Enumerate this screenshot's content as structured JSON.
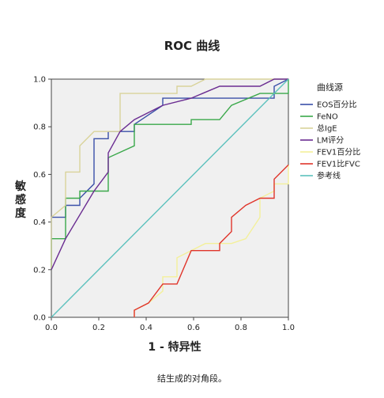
{
  "chart_data": {
    "type": "line",
    "title": "ROC 曲线",
    "xlabel": "1 - 特异性",
    "ylabel": "敏感度",
    "xlim": [
      0,
      1
    ],
    "ylim": [
      0,
      1
    ],
    "x_ticks": [
      "0.0",
      "0.2",
      "0.4",
      "0.6",
      "0.8",
      "1.0"
    ],
    "y_ticks": [
      "0.0",
      "0.2",
      "0.4",
      "0.6",
      "0.8",
      "1.0"
    ],
    "grid": false,
    "legend_title": "曲线源",
    "legend_position": "right",
    "footnote": "结生成的对角段。",
    "series": [
      {
        "name": "EOS百分比",
        "color": "#3a4fa8",
        "points": [
          [
            0,
            0.2
          ],
          [
            0,
            0.42
          ],
          [
            0.06,
            0.42
          ],
          [
            0.06,
            0.47
          ],
          [
            0.12,
            0.47
          ],
          [
            0.12,
            0.5
          ],
          [
            0.18,
            0.56
          ],
          [
            0.18,
            0.75
          ],
          [
            0.24,
            0.75
          ],
          [
            0.24,
            0.78
          ],
          [
            0.35,
            0.78
          ],
          [
            0.35,
            0.81
          ],
          [
            0.47,
            0.89
          ],
          [
            0.47,
            0.92
          ],
          [
            0.94,
            0.92
          ],
          [
            0.94,
            0.97
          ],
          [
            1,
            1
          ]
        ]
      },
      {
        "name": "FeNO",
        "color": "#3aa84a",
        "points": [
          [
            0,
            0.2
          ],
          [
            0,
            0.33
          ],
          [
            0.06,
            0.33
          ],
          [
            0.06,
            0.5
          ],
          [
            0.12,
            0.5
          ],
          [
            0.12,
            0.53
          ],
          [
            0.24,
            0.53
          ],
          [
            0.24,
            0.67
          ],
          [
            0.35,
            0.72
          ],
          [
            0.35,
            0.81
          ],
          [
            0.59,
            0.81
          ],
          [
            0.59,
            0.83
          ],
          [
            0.71,
            0.83
          ],
          [
            0.76,
            0.89
          ],
          [
            0.88,
            0.94
          ],
          [
            1,
            0.94
          ],
          [
            1,
            1
          ]
        ]
      },
      {
        "name": "总IgE",
        "color": "#d9d39a",
        "points": [
          [
            0,
            0.2
          ],
          [
            0,
            0.42
          ],
          [
            0.06,
            0.47
          ],
          [
            0.06,
            0.61
          ],
          [
            0.12,
            0.61
          ],
          [
            0.12,
            0.72
          ],
          [
            0.18,
            0.78
          ],
          [
            0.29,
            0.78
          ],
          [
            0.29,
            0.81
          ],
          [
            0.29,
            0.94
          ],
          [
            0.53,
            0.94
          ],
          [
            0.53,
            0.97
          ],
          [
            0.59,
            0.97
          ],
          [
            0.65,
            1
          ],
          [
            1,
            1
          ]
        ]
      },
      {
        "name": "LM评分",
        "color": "#6a2c91",
        "points": [
          [
            0,
            0.2
          ],
          [
            0.06,
            0.33
          ],
          [
            0.18,
            0.53
          ],
          [
            0.24,
            0.61
          ],
          [
            0.24,
            0.69
          ],
          [
            0.29,
            0.78
          ],
          [
            0.35,
            0.83
          ],
          [
            0.47,
            0.89
          ],
          [
            0.59,
            0.92
          ],
          [
            0.71,
            0.97
          ],
          [
            0.88,
            0.97
          ],
          [
            0.94,
            1
          ],
          [
            1,
            1
          ]
        ]
      },
      {
        "name": "FEV1百分比",
        "color": "#f3f09a",
        "points": [
          [
            0.35,
            0
          ],
          [
            0.35,
            0.03
          ],
          [
            0.41,
            0.06
          ],
          [
            0.47,
            0.11
          ],
          [
            0.47,
            0.17
          ],
          [
            0.53,
            0.17
          ],
          [
            0.53,
            0.25
          ],
          [
            0.65,
            0.31
          ],
          [
            0.71,
            0.31
          ],
          [
            0.76,
            0.31
          ],
          [
            0.82,
            0.33
          ],
          [
            0.88,
            0.42
          ],
          [
            0.88,
            0.5
          ],
          [
            0.94,
            0.53
          ],
          [
            0.94,
            0.56
          ],
          [
            1,
            0.56
          ],
          [
            1,
            0.64
          ]
        ]
      },
      {
        "name": "FEV1比FVC",
        "color": "#e0352b",
        "points": [
          [
            0.35,
            0
          ],
          [
            0.35,
            0.03
          ],
          [
            0.41,
            0.06
          ],
          [
            0.47,
            0.14
          ],
          [
            0.53,
            0.14
          ],
          [
            0.59,
            0.28
          ],
          [
            0.71,
            0.28
          ],
          [
            0.71,
            0.31
          ],
          [
            0.76,
            0.36
          ],
          [
            0.76,
            0.42
          ],
          [
            0.82,
            0.47
          ],
          [
            0.88,
            0.5
          ],
          [
            0.94,
            0.5
          ],
          [
            0.94,
            0.58
          ],
          [
            1,
            0.64
          ]
        ]
      },
      {
        "name": "参考线",
        "color": "#5cc1bd",
        "points": [
          [
            0,
            0
          ],
          [
            1,
            1
          ]
        ]
      }
    ]
  }
}
